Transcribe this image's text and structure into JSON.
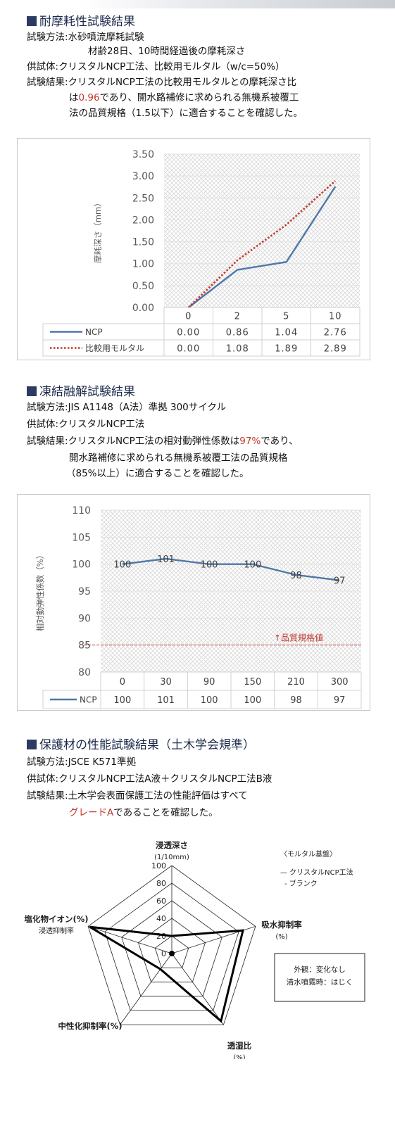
{
  "sections": [
    {
      "title": "耐摩耗性試験結果",
      "lines": [
        {
          "label": "試験方法:",
          "text": "水砂噴流摩耗試験"
        },
        {
          "text": "材齢28日、10時間経過後の摩耗深さ"
        },
        {
          "label": "供試体:",
          "text": "クリスタルNCP工法、比較用モルタル（w/c=50%）"
        },
        {
          "label": "試験結果:",
          "text": "クリスタルNCP工法の比較用モルタルとの摩耗深さ比"
        },
        {
          "pre": "は",
          "highlight": "0.96",
          "post": "であり、開水路補修に求められる無機系被覆工"
        },
        {
          "text": "法の品質規格（1.5以下）に適合することを確認した。"
        }
      ]
    },
    {
      "title": "凍結融解試験結果",
      "lines": [
        {
          "label": "試験方法:",
          "text": "JIS A1148（A法）準拠 300サイクル"
        },
        {
          "label": "供試体:",
          "text": "クリスタルNCP工法"
        },
        {
          "label": "試験結果:",
          "pre": "クリスタルNCP工法の相対動弾性係数は",
          "highlight": "97%",
          "post": "であり、"
        },
        {
          "text": "開水路補修に求められる無機系被覆工法の品質規格"
        },
        {
          "text": "（85%以上）に適合することを確認した。"
        }
      ]
    },
    {
      "title": "保護材の性能試験結果（土木学会規準）",
      "lines": [
        {
          "label": "試験方法:",
          "text": "JSCE K571準拠"
        },
        {
          "label": "供試体:",
          "text": "クリスタルNCP工法A液＋クリスタルNCP工法B液"
        },
        {
          "label": "試験結果:",
          "text": "土木学会表面保護工法の性能評価はすべて"
        },
        {
          "highlight": "グレードA",
          "post": "であることを確認した。"
        }
      ]
    }
  ],
  "chart_data": [
    {
      "type": "line",
      "ylabel": "摩耗深さ（mm）",
      "categories": [
        "0",
        "2",
        "5",
        "10"
      ],
      "ylim": [
        0,
        3.5
      ],
      "yticks": [
        "0.00",
        "0.50",
        "1.00",
        "1.50",
        "2.00",
        "2.50",
        "3.00",
        "3.50"
      ],
      "series": [
        {
          "name": "NCP",
          "values": [
            0.0,
            0.86,
            1.04,
            2.76
          ],
          "labels": [
            "0.00",
            "0.86",
            "1.04",
            "2.76"
          ],
          "color": "#4f77a8",
          "style": "solid"
        },
        {
          "name": "比較用モルタル",
          "values": [
            0.0,
            1.08,
            1.89,
            2.89
          ],
          "labels": [
            "0.00",
            "1.08",
            "1.89",
            "2.89"
          ],
          "color": "#c0392b",
          "style": "dotted"
        }
      ],
      "data_table": true
    },
    {
      "type": "line",
      "ylabel": "相対動弾性係数（%）",
      "categories": [
        "0",
        "30",
        "90",
        "150",
        "210",
        "300"
      ],
      "ylim": [
        80,
        110
      ],
      "yticks": [
        "80",
        "85",
        "90",
        "95",
        "100",
        "105",
        "110"
      ],
      "series": [
        {
          "name": "NCP",
          "values": [
            100,
            101,
            100,
            100,
            98,
            97
          ],
          "labels": [
            "100",
            "101",
            "100",
            "100",
            "98",
            "97"
          ],
          "color": "#4f77a8",
          "style": "solid"
        }
      ],
      "reference_line": {
        "value": 85,
        "label": "↑品質規格値",
        "color": "#c0392b"
      },
      "data_table": true
    },
    {
      "type": "radar",
      "axes": [
        "浸透深さ\n(1/10mm)",
        "吸水抑制率\n(%)",
        "透湿比\n(%)",
        "中性化抑制率(%)",
        "塩化物イオン(%)\n浸透抑制率"
      ],
      "rlim": [
        0,
        100
      ],
      "rticks": [
        "0",
        "20",
        "40",
        "60",
        "80",
        "100"
      ],
      "series": [
        {
          "name": "クリスタルNCP工法",
          "values": [
            20,
            85,
            95,
            22,
            98
          ],
          "color": "#000000"
        },
        {
          "name": "ブランク",
          "values": [
            0,
            0,
            0,
            0,
            0
          ],
          "color": "#000000"
        }
      ],
      "legend_title": "〈モルタル基盤〉",
      "legend_items": [
        "—  クリスタルNCP工法",
        "-  ブランク"
      ],
      "note": [
        "外観：変化なし",
        "清水噴霧時：はじく"
      ]
    }
  ]
}
